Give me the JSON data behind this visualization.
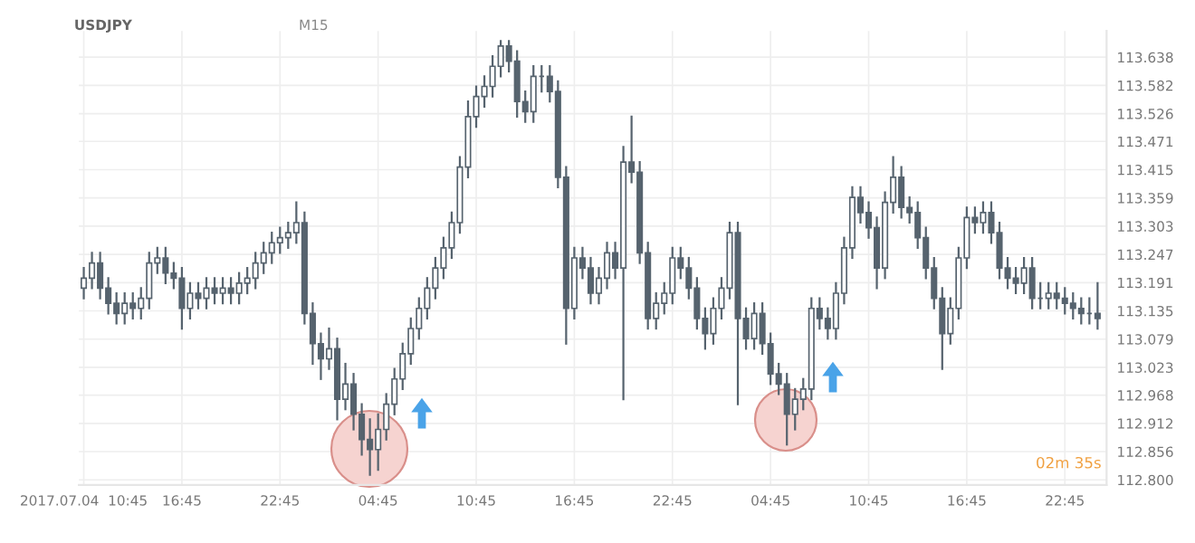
{
  "chart_data": {
    "type": "candlestick",
    "title": "USDJPY",
    "annotations": [
      "M15",
      "02m 35s"
    ],
    "color": "#56636e",
    "grid": true,
    "x": [
      "2017-07-04T10:45",
      "2017-07-04T11:15",
      "2017-07-04T11:45",
      "2017-07-04T12:15",
      "2017-07-04T12:45",
      "2017-07-04T13:15",
      "2017-07-04T13:45",
      "2017-07-04T14:15",
      "2017-07-04T14:45",
      "2017-07-04T15:15",
      "2017-07-04T15:45",
      "2017-07-04T16:15",
      "2017-07-04T16:45",
      "2017-07-04T17:15",
      "2017-07-04T17:45",
      "2017-07-04T18:15",
      "2017-07-04T18:45",
      "2017-07-04T19:15",
      "2017-07-04T19:45",
      "2017-07-04T20:15",
      "2017-07-04T20:45",
      "2017-07-04T21:15",
      "2017-07-04T21:45",
      "2017-07-04T22:15",
      "2017-07-04T22:45",
      "2017-07-04T23:15",
      "2017-07-04T23:45",
      "2017-07-05T00:15",
      "2017-07-05T00:45",
      "2017-07-05T01:15",
      "2017-07-05T01:45",
      "2017-07-05T02:15",
      "2017-07-05T02:45",
      "2017-07-05T03:15",
      "2017-07-05T03:45",
      "2017-07-05T04:15",
      "2017-07-05T04:45",
      "2017-07-05T05:15",
      "2017-07-05T05:45",
      "2017-07-05T06:15",
      "2017-07-05T06:45",
      "2017-07-05T07:15",
      "2017-07-05T07:45",
      "2017-07-05T08:15",
      "2017-07-05T08:45",
      "2017-07-05T09:15",
      "2017-07-05T09:45",
      "2017-07-05T10:15",
      "2017-07-05T10:45",
      "2017-07-05T11:15",
      "2017-07-05T11:45",
      "2017-07-05T12:15",
      "2017-07-05T12:45",
      "2017-07-05T13:15",
      "2017-07-05T13:45",
      "2017-07-05T14:15",
      "2017-07-05T14:45",
      "2017-07-05T15:15",
      "2017-07-05T15:45",
      "2017-07-05T16:15",
      "2017-07-05T16:45",
      "2017-07-05T17:15",
      "2017-07-05T17:45",
      "2017-07-05T18:15",
      "2017-07-05T18:45",
      "2017-07-05T19:15",
      "2017-07-05T19:45",
      "2017-07-05T20:15",
      "2017-07-05T20:45",
      "2017-07-05T21:15",
      "2017-07-05T21:45",
      "2017-07-05T22:15",
      "2017-07-05T22:45",
      "2017-07-05T23:15",
      "2017-07-05T23:45",
      "2017-07-06T00:15",
      "2017-07-06T00:45",
      "2017-07-06T01:15",
      "2017-07-06T01:45",
      "2017-07-06T02:15",
      "2017-07-06T02:45",
      "2017-07-06T03:15",
      "2017-07-06T03:45",
      "2017-07-06T04:15",
      "2017-07-06T04:45",
      "2017-07-06T05:15",
      "2017-07-06T05:45",
      "2017-07-06T06:15",
      "2017-07-06T06:45",
      "2017-07-06T07:15",
      "2017-07-06T07:45",
      "2017-07-06T08:15",
      "2017-07-06T08:45",
      "2017-07-06T09:15",
      "2017-07-06T09:45",
      "2017-07-06T10:15",
      "2017-07-06T10:45",
      "2017-07-06T11:15",
      "2017-07-06T11:45",
      "2017-07-06T12:15",
      "2017-07-06T12:45",
      "2017-07-06T13:15",
      "2017-07-06T13:45",
      "2017-07-06T14:15",
      "2017-07-06T14:45",
      "2017-07-06T15:15",
      "2017-07-06T15:45",
      "2017-07-06T16:15",
      "2017-07-06T16:45",
      "2017-07-06T17:15",
      "2017-07-06T17:45",
      "2017-07-06T18:15",
      "2017-07-06T18:45",
      "2017-07-06T19:15",
      "2017-07-06T19:45",
      "2017-07-06T20:15",
      "2017-07-06T20:45",
      "2017-07-06T21:15",
      "2017-07-06T21:45",
      "2017-07-06T22:15",
      "2017-07-06T22:45",
      "2017-07-06T23:15",
      "2017-07-06T23:45",
      "2017-07-07T00:15",
      "2017-07-07T00:45"
    ],
    "ohlc": [
      [
        113.18,
        113.22,
        113.16,
        113.2
      ],
      [
        113.2,
        113.25,
        113.18,
        113.23
      ],
      [
        113.23,
        113.25,
        113.16,
        113.18
      ],
      [
        113.18,
        113.2,
        113.13,
        113.15
      ],
      [
        113.15,
        113.17,
        113.11,
        113.13
      ],
      [
        113.13,
        113.17,
        113.11,
        113.15
      ],
      [
        113.15,
        113.17,
        113.12,
        113.14
      ],
      [
        113.14,
        113.18,
        113.12,
        113.16
      ],
      [
        113.16,
        113.25,
        113.14,
        113.23
      ],
      [
        113.23,
        113.26,
        113.21,
        113.24
      ],
      [
        113.24,
        113.26,
        113.19,
        113.21
      ],
      [
        113.21,
        113.23,
        113.18,
        113.2
      ],
      [
        113.2,
        113.22,
        113.1,
        113.14
      ],
      [
        113.14,
        113.19,
        113.12,
        113.17
      ],
      [
        113.17,
        113.19,
        113.14,
        113.16
      ],
      [
        113.16,
        113.2,
        113.14,
        113.18
      ],
      [
        113.18,
        113.2,
        113.15,
        113.17
      ],
      [
        113.17,
        113.2,
        113.15,
        113.18
      ],
      [
        113.18,
        113.2,
        113.15,
        113.17
      ],
      [
        113.17,
        113.21,
        113.15,
        113.19
      ],
      [
        113.19,
        113.22,
        113.17,
        113.2
      ],
      [
        113.2,
        113.25,
        113.18,
        113.23
      ],
      [
        113.23,
        113.27,
        113.21,
        113.25
      ],
      [
        113.25,
        113.29,
        113.23,
        113.27
      ],
      [
        113.27,
        113.3,
        113.25,
        113.28
      ],
      [
        113.28,
        113.31,
        113.26,
        113.29
      ],
      [
        113.29,
        113.35,
        113.27,
        113.31
      ],
      [
        113.31,
        113.33,
        113.11,
        113.13
      ],
      [
        113.13,
        113.15,
        113.03,
        113.07
      ],
      [
        113.07,
        113.09,
        113.0,
        113.04
      ],
      [
        113.04,
        113.1,
        113.02,
        113.06
      ],
      [
        113.06,
        113.08,
        112.92,
        112.96
      ],
      [
        112.96,
        113.03,
        112.94,
        112.99
      ],
      [
        112.99,
        113.01,
        112.9,
        112.93
      ],
      [
        112.93,
        112.95,
        112.85,
        112.88
      ],
      [
        112.88,
        112.92,
        112.81,
        112.86
      ],
      [
        112.86,
        112.93,
        112.82,
        112.9
      ],
      [
        112.9,
        112.97,
        112.88,
        112.95
      ],
      [
        112.95,
        113.02,
        112.93,
        113.0
      ],
      [
        113.0,
        113.07,
        112.98,
        113.05
      ],
      [
        113.05,
        113.12,
        113.03,
        113.1
      ],
      [
        113.1,
        113.16,
        113.08,
        113.14
      ],
      [
        113.14,
        113.2,
        113.12,
        113.18
      ],
      [
        113.18,
        113.24,
        113.16,
        113.22
      ],
      [
        113.22,
        113.28,
        113.2,
        113.26
      ],
      [
        113.26,
        113.33,
        113.24,
        113.31
      ],
      [
        113.31,
        113.44,
        113.29,
        113.42
      ],
      [
        113.42,
        113.55,
        113.4,
        113.52
      ],
      [
        113.52,
        113.58,
        113.5,
        113.56
      ],
      [
        113.56,
        113.6,
        113.54,
        113.58
      ],
      [
        113.58,
        113.64,
        113.56,
        113.62
      ],
      [
        113.62,
        113.67,
        113.6,
        113.66
      ],
      [
        113.66,
        113.67,
        113.61,
        113.63
      ],
      [
        113.63,
        113.65,
        113.52,
        113.55
      ],
      [
        113.55,
        113.57,
        113.51,
        113.53
      ],
      [
        113.53,
        113.62,
        113.51,
        113.6
      ],
      [
        113.6,
        113.62,
        113.57,
        113.6
      ],
      [
        113.6,
        113.62,
        113.55,
        113.57
      ],
      [
        113.57,
        113.59,
        113.38,
        113.4
      ],
      [
        113.4,
        113.42,
        113.07,
        113.14
      ],
      [
        113.14,
        113.26,
        113.12,
        113.24
      ],
      [
        113.24,
        113.26,
        113.2,
        113.22
      ],
      [
        113.22,
        113.24,
        113.15,
        113.17
      ],
      [
        113.17,
        113.22,
        113.15,
        113.2
      ],
      [
        113.2,
        113.27,
        113.18,
        113.25
      ],
      [
        113.25,
        113.27,
        113.2,
        113.22
      ],
      [
        113.22,
        113.46,
        112.96,
        113.43
      ],
      [
        113.43,
        113.52,
        113.39,
        113.41
      ],
      [
        113.41,
        113.43,
        113.23,
        113.25
      ],
      [
        113.25,
        113.27,
        113.1,
        113.12
      ],
      [
        113.12,
        113.17,
        113.1,
        113.15
      ],
      [
        113.15,
        113.19,
        113.13,
        113.17
      ],
      [
        113.17,
        113.26,
        113.15,
        113.24
      ],
      [
        113.24,
        113.26,
        113.2,
        113.22
      ],
      [
        113.22,
        113.24,
        113.16,
        113.18
      ],
      [
        113.18,
        113.2,
        113.1,
        113.12
      ],
      [
        113.12,
        113.14,
        113.06,
        113.09
      ],
      [
        113.09,
        113.16,
        113.07,
        113.14
      ],
      [
        113.14,
        113.2,
        113.12,
        113.18
      ],
      [
        113.18,
        113.31,
        113.16,
        113.29
      ],
      [
        113.29,
        113.31,
        112.95,
        113.12
      ],
      [
        113.12,
        113.14,
        113.06,
        113.08
      ],
      [
        113.08,
        113.15,
        113.06,
        113.13
      ],
      [
        113.13,
        113.15,
        113.05,
        113.07
      ],
      [
        113.07,
        113.09,
        112.99,
        113.01
      ],
      [
        113.01,
        113.03,
        112.97,
        112.99
      ],
      [
        112.99,
        113.01,
        112.87,
        112.93
      ],
      [
        112.93,
        112.98,
        112.9,
        112.96
      ],
      [
        112.96,
        113.0,
        112.94,
        112.98
      ],
      [
        112.98,
        113.16,
        112.96,
        113.14
      ],
      [
        113.14,
        113.16,
        113.1,
        113.12
      ],
      [
        113.12,
        113.14,
        113.08,
        113.1
      ],
      [
        113.1,
        113.19,
        113.08,
        113.17
      ],
      [
        113.17,
        113.28,
        113.15,
        113.26
      ],
      [
        113.26,
        113.38,
        113.24,
        113.36
      ],
      [
        113.36,
        113.38,
        113.31,
        113.33
      ],
      [
        113.33,
        113.35,
        113.28,
        113.3
      ],
      [
        113.3,
        113.32,
        113.18,
        113.22
      ],
      [
        113.22,
        113.37,
        113.2,
        113.35
      ],
      [
        113.35,
        113.44,
        113.33,
        113.4
      ],
      [
        113.4,
        113.42,
        113.32,
        113.34
      ],
      [
        113.34,
        113.36,
        113.31,
        113.33
      ],
      [
        113.33,
        113.35,
        113.26,
        113.28
      ],
      [
        113.28,
        113.3,
        113.2,
        113.22
      ],
      [
        113.22,
        113.24,
        113.14,
        113.16
      ],
      [
        113.16,
        113.18,
        113.02,
        113.09
      ],
      [
        113.09,
        113.16,
        113.07,
        113.14
      ],
      [
        113.14,
        113.26,
        113.12,
        113.24
      ],
      [
        113.24,
        113.34,
        113.22,
        113.32
      ],
      [
        113.32,
        113.34,
        113.29,
        113.31
      ],
      [
        113.31,
        113.35,
        113.29,
        113.33
      ],
      [
        113.33,
        113.35,
        113.27,
        113.29
      ],
      [
        113.29,
        113.31,
        113.2,
        113.22
      ],
      [
        113.22,
        113.24,
        113.18,
        113.2
      ],
      [
        113.2,
        113.22,
        113.17,
        113.19
      ],
      [
        113.19,
        113.24,
        113.17,
        113.22
      ],
      [
        113.22,
        113.24,
        113.14,
        113.16
      ],
      [
        113.16,
        113.19,
        113.14,
        113.16
      ],
      [
        113.16,
        113.19,
        113.14,
        113.17
      ],
      [
        113.17,
        113.19,
        113.14,
        113.16
      ],
      [
        113.16,
        113.18,
        113.13,
        113.15
      ],
      [
        113.15,
        113.17,
        113.12,
        113.14
      ],
      [
        113.14,
        113.16,
        113.11,
        113.13
      ],
      [
        113.13,
        113.16,
        113.11,
        113.13
      ],
      [
        113.13,
        113.19,
        113.1,
        113.12
      ]
    ],
    "xlim": [
      "2017-07-04T10:27",
      "2017-07-07T01:18"
    ],
    "xticks": [
      {
        "value": "2017-07-04T10:45",
        "label": "2017.07.04  10:45"
      },
      {
        "value": "2017-07-04T16:45",
        "label": "16:45"
      },
      {
        "value": "2017-07-04T22:45",
        "label": "22:45"
      },
      {
        "value": "2017-07-05T04:45",
        "label": "04:45"
      },
      {
        "value": "2017-07-05T10:45",
        "label": "10:45"
      },
      {
        "value": "2017-07-05T16:45",
        "label": "16:45"
      },
      {
        "value": "2017-07-05T22:45",
        "label": "22:45"
      },
      {
        "value": "2017-07-06T04:45",
        "label": "04:45"
      },
      {
        "value": "2017-07-06T10:45",
        "label": "10:45"
      },
      {
        "value": "2017-07-06T16:45",
        "label": "16:45"
      },
      {
        "value": "2017-07-06T22:45",
        "label": "22:45"
      }
    ],
    "ylim": [
      112.79,
      113.69
    ],
    "yticks": [
      {
        "value": 112.8,
        "label": "112.800"
      },
      112.856,
      112.912,
      112.968,
      113.023,
      113.079,
      113.135,
      113.191,
      113.247,
      113.303,
      113.359,
      113.415,
      113.471,
      113.526,
      113.582,
      113.638
    ]
  }
}
